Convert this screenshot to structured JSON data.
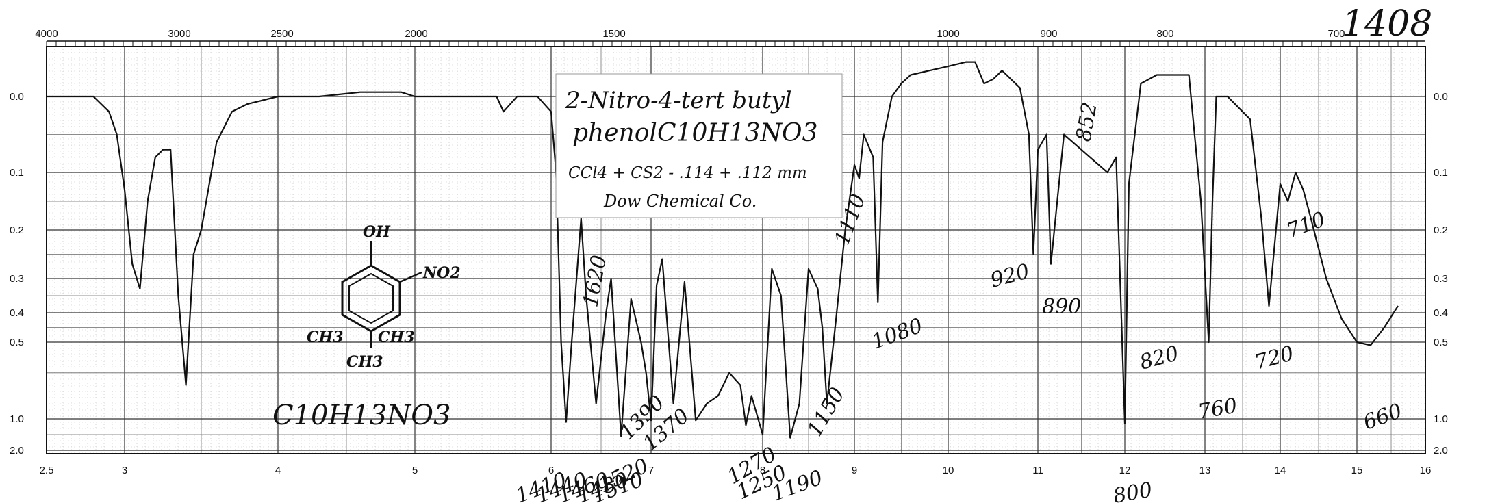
{
  "chart_data": {
    "type": "line",
    "catalog_number": "1408",
    "title_line1": "2-Nitro-4-tert butyl",
    "title_line2_text": "phenol",
    "title_line2_formula": "C10H13NO3",
    "conditions": "CCl4 + CS2 - .114 + .112 mm",
    "source": "Dow Chemical Co.",
    "bottom_formula": "C10H13NO3",
    "structure_labels": {
      "oh": "OH",
      "no2": "NO2",
      "left_ch3": "CH3",
      "right_ch3": "CH3",
      "bottom_ch3": "CH3"
    },
    "x_bottom": {
      "unit": "microns",
      "range": [
        2.5,
        16
      ],
      "ticks": [
        2.5,
        3,
        4,
        5,
        6,
        7,
        8,
        9,
        10,
        11,
        12,
        13,
        14,
        15,
        16
      ]
    },
    "x_top": {
      "unit": "cm-1",
      "ticks": [
        4000,
        3000,
        2500,
        2000,
        1500,
        1000,
        900,
        800,
        700
      ]
    },
    "y": {
      "unit": "absorbance",
      "ticks": [
        "0.0",
        "0.1",
        "0.2",
        "0.3",
        "0.4",
        "0.5",
        "1.0",
        "2.0"
      ],
      "ticks_right": [
        "0.0",
        "0.1",
        "0.2",
        "0.3",
        "0.4",
        "0.5",
        "1.0",
        "2.0"
      ]
    },
    "grid": true,
    "series": [
      {
        "x": [
          2.5,
          2.6,
          2.8,
          2.9,
          2.95,
          3.0,
          3.05,
          3.1,
          3.15,
          3.2,
          3.25,
          3.3,
          3.35,
          3.4,
          3.45,
          3.5,
          3.6,
          3.7,
          3.8,
          4.0,
          4.3,
          4.6,
          4.9,
          5.0,
          5.2,
          5.4,
          5.6,
          5.65,
          5.75,
          5.9,
          6.0,
          6.05,
          6.1,
          6.15,
          6.2,
          6.3,
          6.35,
          6.45,
          6.55,
          6.6,
          6.7,
          6.8,
          6.9,
          6.95,
          7.0,
          7.05,
          7.1,
          7.2,
          7.3,
          7.4,
          7.5,
          7.6,
          7.7,
          7.8,
          7.85,
          7.9,
          8.0,
          8.1,
          8.2,
          8.3,
          8.4,
          8.5,
          8.6,
          8.65,
          8.7,
          8.8,
          8.9,
          9.0,
          9.05,
          9.1,
          9.2,
          9.25,
          9.3,
          9.4,
          9.5,
          9.6,
          9.8,
          10.0,
          10.2,
          10.3,
          10.4,
          10.5,
          10.6,
          10.8,
          10.9,
          10.95,
          11.0,
          11.1,
          11.15,
          11.3,
          11.5,
          11.6,
          11.8,
          11.9,
          12.0,
          12.05,
          12.2,
          12.4,
          12.6,
          12.8,
          12.95,
          13.05,
          13.1,
          13.15,
          13.3,
          13.6,
          13.75,
          13.85,
          14.0,
          14.1,
          14.2,
          14.3,
          14.4,
          14.6,
          14.8,
          15.0,
          15.2,
          15.4,
          15.6
        ],
        "y": [
          0.0,
          0.0,
          0.0,
          0.02,
          0.05,
          0.13,
          0.27,
          0.33,
          0.15,
          0.08,
          0.07,
          0.07,
          0.35,
          0.78,
          0.25,
          0.2,
          0.06,
          0.02,
          0.01,
          0.0,
          0.0,
          -0.01,
          -0.01,
          0.0,
          0.0,
          0.0,
          0.0,
          0.02,
          0.0,
          0.0,
          0.02,
          0.1,
          0.5,
          1.1,
          0.55,
          0.18,
          0.35,
          0.9,
          0.4,
          0.3,
          1.55,
          0.36,
          0.5,
          0.7,
          1.05,
          0.32,
          0.26,
          0.9,
          0.31,
          1.05,
          0.9,
          0.85,
          0.7,
          0.78,
          1.2,
          0.85,
          1.5,
          0.28,
          0.35,
          1.6,
          0.9,
          0.28,
          0.33,
          0.45,
          0.9,
          0.42,
          0.2,
          0.09,
          0.11,
          0.05,
          0.08,
          0.37,
          0.06,
          0.0,
          -0.03,
          -0.05,
          -0.06,
          -0.07,
          -0.08,
          -0.08,
          -0.03,
          -0.04,
          -0.06,
          -0.02,
          0.05,
          0.25,
          0.07,
          0.05,
          0.27,
          0.05,
          0.07,
          0.08,
          0.1,
          0.08,
          1.15,
          0.12,
          -0.03,
          -0.05,
          -0.05,
          -0.05,
          0.15,
          0.5,
          0.15,
          0.0,
          0.0,
          0.03,
          0.18,
          0.38,
          0.12,
          0.15,
          0.1,
          0.13,
          0.18,
          0.3,
          0.42,
          0.5,
          0.52,
          0.45,
          0.38
        ]
      }
    ],
    "annotations": [
      "1110",
      "1080",
      "920",
      "890",
      "852",
      "820",
      "760",
      "720",
      "710",
      "660",
      "1150",
      "1190",
      "1250",
      "1270",
      "1370",
      "1390",
      "1410",
      "1440",
      "1460",
      "1480",
      "1510",
      "1520",
      "1620",
      "800"
    ]
  }
}
